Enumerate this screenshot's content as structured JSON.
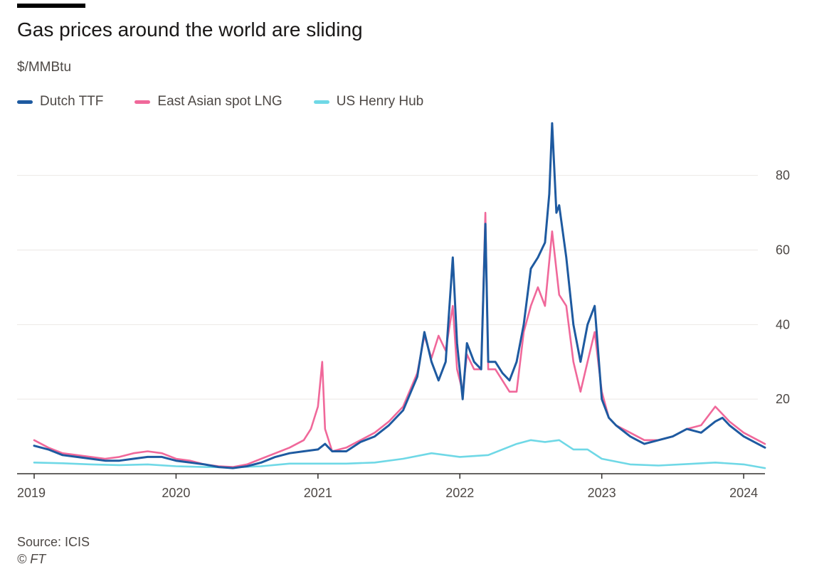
{
  "header": {
    "title": "Gas prices around the world are sliding",
    "subtitle": "$/MMBtu"
  },
  "footer": {
    "source": "Source: ICIS",
    "credit": "© FT"
  },
  "colors": {
    "dutch_ttf": "#1e5aa0",
    "east_asian_lng": "#f0689a",
    "us_henry_hub": "#6fd8e6",
    "grid": "#ebe8e5",
    "axis": "#33302e"
  },
  "chart_data": {
    "type": "line",
    "title": "Gas prices around the world are sliding",
    "ylabel": "$/MMBtu",
    "xlabel": "",
    "x_unit": "year",
    "xlim": [
      2019.0,
      2024.15
    ],
    "ylim": [
      0,
      95
    ],
    "yticks": [
      20,
      40,
      60,
      80
    ],
    "ytick_labels": [
      "20",
      "40",
      "60",
      "80"
    ],
    "xticks": [
      2019,
      2020,
      2021,
      2022,
      2023,
      2024
    ],
    "xtick_labels": [
      "2019",
      "2020",
      "2021",
      "2022",
      "2023",
      "2024"
    ],
    "grid": true,
    "y_axis_side": "right",
    "legend_position": "top-left",
    "series": [
      {
        "name": "Dutch TTF",
        "color": "#1e5aa0",
        "x": [
          2019.0,
          2019.1,
          2019.2,
          2019.3,
          2019.4,
          2019.5,
          2019.6,
          2019.7,
          2019.8,
          2019.9,
          2020.0,
          2020.1,
          2020.2,
          2020.3,
          2020.4,
          2020.5,
          2020.6,
          2020.7,
          2020.8,
          2020.9,
          2021.0,
          2021.05,
          2021.1,
          2021.2,
          2021.3,
          2021.4,
          2021.5,
          2021.6,
          2021.7,
          2021.75,
          2021.8,
          2021.85,
          2021.9,
          2021.95,
          2021.98,
          2022.02,
          2022.05,
          2022.1,
          2022.15,
          2022.18,
          2022.2,
          2022.25,
          2022.3,
          2022.35,
          2022.4,
          2022.45,
          2022.5,
          2022.55,
          2022.6,
          2022.63,
          2022.65,
          2022.68,
          2022.7,
          2022.75,
          2022.8,
          2022.85,
          2022.9,
          2022.95,
          2023.0,
          2023.05,
          2023.1,
          2023.2,
          2023.3,
          2023.4,
          2023.5,
          2023.6,
          2023.7,
          2023.8,
          2023.85,
          2023.9,
          2024.0,
          2024.1,
          2024.15
        ],
        "values": [
          7.5,
          6.5,
          5,
          4.5,
          4,
          3.5,
          3.5,
          4,
          4.5,
          4.5,
          3.5,
          3,
          2.5,
          1.8,
          1.5,
          2,
          3,
          4.5,
          5.5,
          6,
          6.5,
          8,
          6,
          6,
          8.5,
          10,
          13,
          17,
          26,
          38,
          30,
          25,
          30,
          58,
          35,
          20,
          35,
          30,
          28,
          67,
          30,
          30,
          27,
          25,
          30,
          40,
          55,
          58,
          62,
          75,
          94,
          70,
          72,
          58,
          40,
          30,
          40,
          45,
          20,
          15,
          13,
          10,
          8,
          9,
          10,
          12,
          11,
          14,
          15,
          13,
          10,
          8,
          7
        ]
      },
      {
        "name": "East Asian spot LNG",
        "color": "#f0689a",
        "x": [
          2019.0,
          2019.1,
          2019.2,
          2019.3,
          2019.4,
          2019.5,
          2019.6,
          2019.7,
          2019.8,
          2019.9,
          2020.0,
          2020.1,
          2020.2,
          2020.3,
          2020.4,
          2020.5,
          2020.6,
          2020.7,
          2020.8,
          2020.9,
          2020.95,
          2021.0,
          2021.03,
          2021.05,
          2021.1,
          2021.2,
          2021.3,
          2021.4,
          2021.5,
          2021.6,
          2021.7,
          2021.75,
          2021.8,
          2021.85,
          2021.9,
          2021.95,
          2021.98,
          2022.02,
          2022.05,
          2022.1,
          2022.15,
          2022.18,
          2022.2,
          2022.25,
          2022.3,
          2022.35,
          2022.4,
          2022.45,
          2022.5,
          2022.55,
          2022.6,
          2022.65,
          2022.7,
          2022.75,
          2022.8,
          2022.85,
          2022.9,
          2022.95,
          2023.0,
          2023.05,
          2023.1,
          2023.2,
          2023.3,
          2023.4,
          2023.5,
          2023.6,
          2023.7,
          2023.8,
          2023.85,
          2023.9,
          2024.0,
          2024.1,
          2024.15
        ],
        "values": [
          9,
          7,
          5.5,
          5,
          4.5,
          4,
          4.5,
          5.5,
          6,
          5.5,
          4,
          3.5,
          2.5,
          2,
          1.8,
          2.5,
          4,
          5.5,
          7,
          9,
          12,
          18,
          30,
          12,
          6,
          7,
          9,
          11,
          14,
          18,
          27,
          37,
          31,
          37,
          33,
          45,
          28,
          22,
          32,
          28,
          28,
          70,
          28,
          28,
          25,
          22,
          22,
          38,
          45,
          50,
          45,
          65,
          48,
          45,
          30,
          22,
          30,
          38,
          22,
          15,
          13,
          11,
          9,
          9,
          10,
          12,
          13,
          18,
          16,
          14,
          11,
          9,
          8
        ]
      },
      {
        "name": "US Henry Hub",
        "color": "#6fd8e6",
        "x": [
          2019.0,
          2019.2,
          2019.4,
          2019.6,
          2019.8,
          2020.0,
          2020.2,
          2020.4,
          2020.6,
          2020.8,
          2021.0,
          2021.2,
          2021.4,
          2021.6,
          2021.8,
          2022.0,
          2022.2,
          2022.4,
          2022.5,
          2022.6,
          2022.7,
          2022.8,
          2022.9,
          2023.0,
          2023.2,
          2023.4,
          2023.6,
          2023.8,
          2024.0,
          2024.15
        ],
        "values": [
          3,
          2.8,
          2.5,
          2.3,
          2.5,
          2,
          1.8,
          1.7,
          2,
          2.7,
          2.7,
          2.7,
          3,
          4,
          5.5,
          4.5,
          5,
          8,
          9,
          8.5,
          9,
          6.5,
          6.5,
          4,
          2.5,
          2.2,
          2.6,
          3,
          2.5,
          1.5
        ]
      }
    ]
  }
}
